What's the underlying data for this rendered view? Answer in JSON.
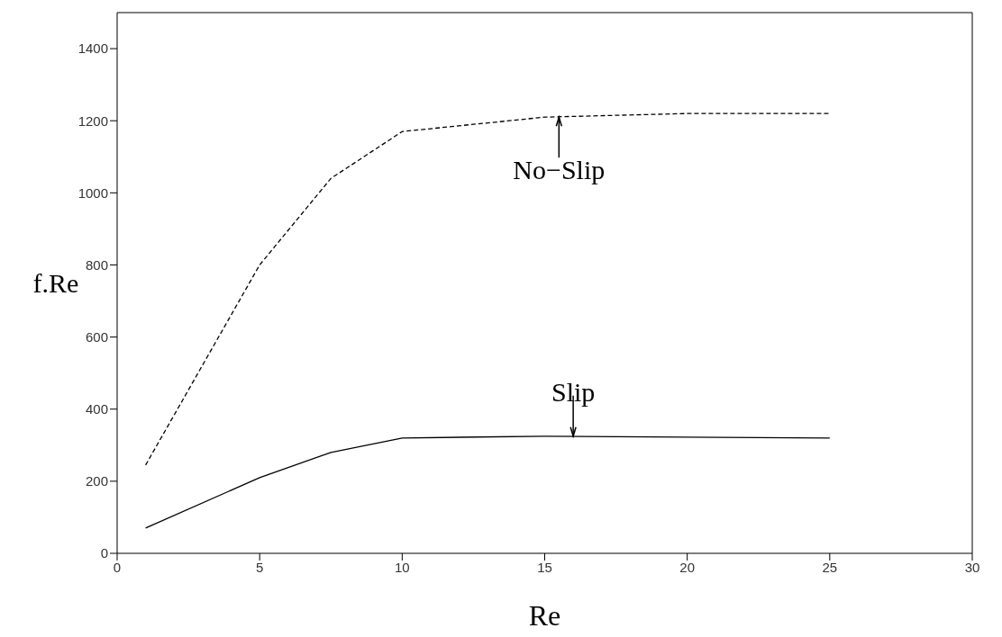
{
  "chart_data": {
    "type": "line",
    "xlabel": "Re",
    "ylabel": "f.Re",
    "xlim": [
      0,
      30
    ],
    "xticks": [
      0,
      5,
      10,
      15,
      20,
      25,
      30
    ],
    "ylim": [
      0,
      1500
    ],
    "yticks": [
      0,
      200,
      400,
      600,
      800,
      1000,
      1200,
      1400
    ],
    "grid": false,
    "marker": "none",
    "series": [
      {
        "color": "#000000",
        "line_style": "dashed",
        "x": [
          1,
          5,
          7.5,
          10,
          15,
          20,
          25
        ],
        "values": [
          245,
          800,
          1040,
          1170,
          1210,
          1220,
          1220
        ]
      },
      {
        "color": "#000000",
        "line_style": "solid",
        "x": [
          1,
          5,
          7.5,
          10,
          15,
          25
        ],
        "values": [
          70,
          210,
          280,
          320,
          325,
          320
        ]
      }
    ],
    "annotations": [
      {
        "text": "No−Slip",
        "x": 15.5,
        "y": 1210
      },
      {
        "text": "Slip",
        "x": 16,
        "y": 325
      }
    ]
  }
}
